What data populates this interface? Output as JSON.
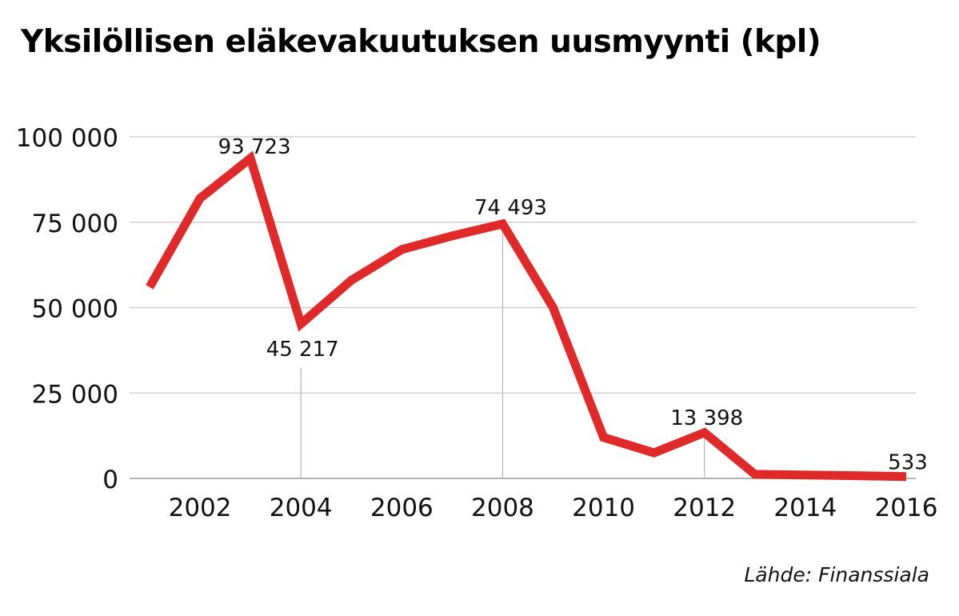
{
  "title": "Yksilöllisen eläkevakuutuksen uusmyynti (kpl)",
  "source": "Lähde: Finanssiala",
  "chart_data": {
    "type": "line",
    "title": "Yksilöllisen eläkevakuutuksen uusmyynti (kpl)",
    "xlabel": "",
    "ylabel": "",
    "x": [
      2001,
      2002,
      2003,
      2004,
      2005,
      2006,
      2007,
      2008,
      2009,
      2010,
      2011,
      2012,
      2013,
      2014,
      2015,
      2016
    ],
    "series": [
      {
        "name": "",
        "values": [
          56000,
          82000,
          93723,
          45217,
          58000,
          67000,
          71000,
          74493,
          50000,
          12000,
          7500,
          13398,
          1200,
          1000,
          800,
          533
        ]
      }
    ],
    "ylim": [
      0,
      100000
    ],
    "xlim": [
      2001,
      2016
    ],
    "yticks": [
      0,
      25000,
      50000,
      75000,
      100000
    ],
    "ytick_labels": [
      "0",
      "25 000",
      "50 000",
      "75 000",
      "100 000"
    ],
    "xticks": [
      2002,
      2004,
      2006,
      2008,
      2010,
      2012,
      2014,
      2016
    ],
    "xtick_labels": [
      "2002",
      "2004",
      "2006",
      "2008",
      "2010",
      "2012",
      "2014",
      "2016"
    ],
    "annotations": [
      {
        "x": 2003,
        "y": 93723,
        "label": "93 723"
      },
      {
        "x": 2004,
        "y": 45217,
        "label": "45 217"
      },
      {
        "x": 2008,
        "y": 74493,
        "label": "74 493"
      },
      {
        "x": 2012,
        "y": 13398,
        "label": "13 398"
      },
      {
        "x": 2016,
        "y": 533,
        "label": "533"
      }
    ],
    "grid": true,
    "line_color": "#e02a2a",
    "grid_color": "#c8c8c8"
  }
}
